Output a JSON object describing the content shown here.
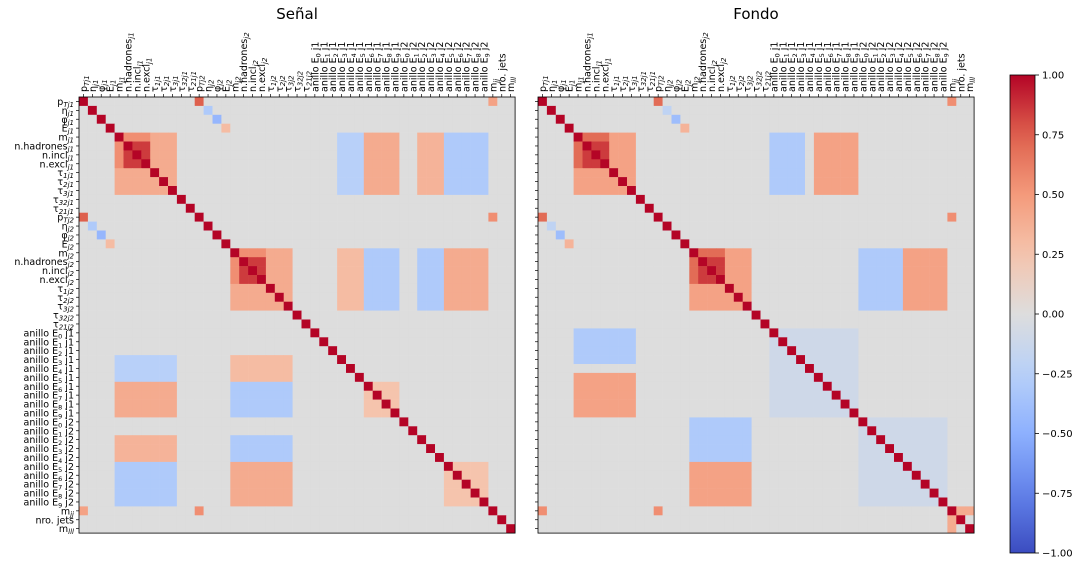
{
  "chart_data": {
    "type": "heatmap",
    "colormap": "coolwarm",
    "color_range": [
      -1.0,
      1.0
    ],
    "colorbar_ticks": [
      {
        "value": 1.0,
        "label": "1.00"
      },
      {
        "value": 0.75,
        "label": "0.75"
      },
      {
        "value": 0.5,
        "label": "0.50"
      },
      {
        "value": 0.25,
        "label": "0.25"
      },
      {
        "value": 0.0,
        "label": "0.00"
      },
      {
        "value": -0.25,
        "label": "−0.25"
      },
      {
        "value": -0.5,
        "label": "−0.50"
      },
      {
        "value": -0.75,
        "label": "−0.75"
      },
      {
        "value": -1.0,
        "label": "−1.00"
      }
    ],
    "variables": [
      "p_T_j1",
      "η_j1",
      "φ_j1",
      "E_j1",
      "m_j1",
      "n.hadrones_j1",
      "n.incl_j1",
      "n.excl_j1",
      "τ_1_j1",
      "τ_2_j1",
      "τ_3_j1",
      "τ_32_j1",
      "τ_21_j1",
      "p_T_j2",
      "η_j2",
      "φ_j2",
      "E_j2",
      "m_j2",
      "n.hadrones_j2",
      "n.incl_j2",
      "n.excl_j2",
      "τ_1_j2",
      "τ_2_j2",
      "τ_3_j2",
      "τ_32_j2",
      "τ_21_j2",
      "anillo E_0 j1",
      "anillo E_1 j1",
      "anillo E_2 j1",
      "anillo E_3 j1",
      "anillo E_4 j1",
      "anillo E_5 j1",
      "anillo E_6 j1",
      "anillo E_7 j1",
      "anillo E_8 j1",
      "anillo E_9 j1",
      "anillo E_0 j2",
      "anillo E_1 j2",
      "anillo E_2 j2",
      "anillo E_3 j2",
      "anillo E_4 j2",
      "anillo E_5 j2",
      "anillo E_6 j2",
      "anillo E_7 j2",
      "anillo E_8 j2",
      "anillo E_9 j2",
      "m_jj",
      "nro. jets",
      "m_lll"
    ],
    "panels": [
      {
        "title": "Señal",
        "blocks": [
          {
            "rows": [
              5,
              7
            ],
            "cols": [
              5,
              7
            ],
            "value": 0.85
          },
          {
            "rows": [
              4,
              4
            ],
            "cols": [
              5,
              7
            ],
            "value": 0.55
          },
          {
            "rows": [
              5,
              7
            ],
            "cols": [
              4,
              4
            ],
            "value": 0.55
          },
          {
            "rows": [
              4,
              10
            ],
            "cols": [
              4,
              10
            ],
            "value": 0.4
          },
          {
            "rows": [
              17,
              17
            ],
            "cols": [
              18,
              20
            ],
            "value": 0.55
          },
          {
            "rows": [
              18,
              20
            ],
            "cols": [
              17,
              17
            ],
            "value": 0.55
          },
          {
            "rows": [
              18,
              20
            ],
            "cols": [
              18,
              20
            ],
            "value": 0.85
          },
          {
            "rows": [
              17,
              23
            ],
            "cols": [
              17,
              23
            ],
            "value": 0.4
          },
          {
            "rows": [
              32,
              35
            ],
            "cols": [
              32,
              35
            ],
            "value": 0.25
          },
          {
            "rows": [
              41,
              45
            ],
            "cols": [
              41,
              45
            ],
            "value": 0.25
          },
          {
            "rows": [
              4,
              10
            ],
            "cols": [
              32,
              35
            ],
            "value": 0.4
          },
          {
            "rows": [
              32,
              35
            ],
            "cols": [
              4,
              10
            ],
            "value": 0.4
          },
          {
            "rows": [
              4,
              10
            ],
            "cols": [
              29,
              31
            ],
            "value": -0.25
          },
          {
            "rows": [
              29,
              31
            ],
            "cols": [
              4,
              10
            ],
            "value": -0.25
          },
          {
            "rows": [
              4,
              10
            ],
            "cols": [
              41,
              45
            ],
            "value": -0.3
          },
          {
            "rows": [
              41,
              45
            ],
            "cols": [
              4,
              10
            ],
            "value": -0.3
          },
          {
            "rows": [
              4,
              10
            ],
            "cols": [
              38,
              40
            ],
            "value": 0.35
          },
          {
            "rows": [
              38,
              40
            ],
            "cols": [
              4,
              10
            ],
            "value": 0.35
          },
          {
            "rows": [
              17,
              23
            ],
            "cols": [
              38,
              40
            ],
            "value": -0.3
          },
          {
            "rows": [
              38,
              40
            ],
            "cols": [
              17,
              23
            ],
            "value": -0.3
          },
          {
            "rows": [
              17,
              23
            ],
            "cols": [
              41,
              45
            ],
            "value": 0.4
          },
          {
            "rows": [
              41,
              45
            ],
            "cols": [
              17,
              23
            ],
            "value": 0.4
          },
          {
            "rows": [
              17,
              23
            ],
            "cols": [
              29,
              31
            ],
            "value": 0.3
          },
          {
            "rows": [
              29,
              31
            ],
            "cols": [
              17,
              23
            ],
            "value": 0.3
          },
          {
            "rows": [
              17,
              23
            ],
            "cols": [
              32,
              35
            ],
            "value": -0.3
          },
          {
            "rows": [
              32,
              35
            ],
            "cols": [
              17,
              23
            ],
            "value": -0.3
          },
          {
            "rows": [
              0,
              0
            ],
            "cols": [
              13,
              13
            ],
            "value": 0.75
          },
          {
            "rows": [
              13,
              13
            ],
            "cols": [
              0,
              0
            ],
            "value": 0.75
          },
          {
            "rows": [
              0,
              0
            ],
            "cols": [
              46,
              46
            ],
            "value": 0.45
          },
          {
            "rows": [
              46,
              46
            ],
            "cols": [
              0,
              0
            ],
            "value": 0.45
          },
          {
            "rows": [
              13,
              13
            ],
            "cols": [
              46,
              46
            ],
            "value": 0.55
          },
          {
            "rows": [
              46,
              46
            ],
            "cols": [
              13,
              13
            ],
            "value": 0.55
          },
          {
            "rows": [
              3,
              3
            ],
            "cols": [
              16,
              16
            ],
            "value": 0.3
          },
          {
            "rows": [
              16,
              16
            ],
            "cols": [
              3,
              3
            ],
            "value": 0.3
          },
          {
            "rows": [
              1,
              1
            ],
            "cols": [
              14,
              14
            ],
            "value": -0.3
          },
          {
            "rows": [
              14,
              14
            ],
            "cols": [
              1,
              1
            ],
            "value": -0.3
          },
          {
            "rows": [
              2,
              2
            ],
            "cols": [
              15,
              15
            ],
            "value": -0.45
          },
          {
            "rows": [
              15,
              15
            ],
            "cols": [
              2,
              2
            ],
            "value": -0.45
          }
        ]
      },
      {
        "title": "Fondo",
        "blocks": [
          {
            "rows": [
              5,
              7
            ],
            "cols": [
              5,
              7
            ],
            "value": 0.85
          },
          {
            "rows": [
              4,
              4
            ],
            "cols": [
              5,
              7
            ],
            "value": 0.7
          },
          {
            "rows": [
              5,
              7
            ],
            "cols": [
              4,
              4
            ],
            "value": 0.7
          },
          {
            "rows": [
              4,
              10
            ],
            "cols": [
              4,
              10
            ],
            "value": 0.45
          },
          {
            "rows": [
              17,
              17
            ],
            "cols": [
              18,
              20
            ],
            "value": 0.7
          },
          {
            "rows": [
              18,
              20
            ],
            "cols": [
              17,
              17
            ],
            "value": 0.7
          },
          {
            "rows": [
              18,
              20
            ],
            "cols": [
              18,
              20
            ],
            "value": 0.85
          },
          {
            "rows": [
              17,
              23
            ],
            "cols": [
              17,
              23
            ],
            "value": 0.45
          },
          {
            "rows": [
              26,
              35
            ],
            "cols": [
              26,
              35
            ],
            "value": -0.1
          },
          {
            "rows": [
              36,
              45
            ],
            "cols": [
              36,
              45
            ],
            "value": -0.1
          },
          {
            "rows": [
              4,
              10
            ],
            "cols": [
              26,
              29
            ],
            "value": -0.3
          },
          {
            "rows": [
              26,
              29
            ],
            "cols": [
              4,
              10
            ],
            "value": -0.3
          },
          {
            "rows": [
              4,
              10
            ],
            "cols": [
              31,
              35
            ],
            "value": 0.45
          },
          {
            "rows": [
              31,
              35
            ],
            "cols": [
              4,
              10
            ],
            "value": 0.45
          },
          {
            "rows": [
              17,
              23
            ],
            "cols": [
              36,
              40
            ],
            "value": -0.3
          },
          {
            "rows": [
              36,
              40
            ],
            "cols": [
              17,
              23
            ],
            "value": -0.3
          },
          {
            "rows": [
              17,
              23
            ],
            "cols": [
              41,
              45
            ],
            "value": 0.45
          },
          {
            "rows": [
              41,
              45
            ],
            "cols": [
              17,
              23
            ],
            "value": 0.45
          },
          {
            "rows": [
              0,
              0
            ],
            "cols": [
              13,
              13
            ],
            "value": 0.7
          },
          {
            "rows": [
              13,
              13
            ],
            "cols": [
              0,
              0
            ],
            "value": 0.7
          },
          {
            "rows": [
              0,
              0
            ],
            "cols": [
              46,
              46
            ],
            "value": 0.55
          },
          {
            "rows": [
              46,
              46
            ],
            "cols": [
              0,
              0
            ],
            "value": 0.55
          },
          {
            "rows": [
              13,
              13
            ],
            "cols": [
              46,
              46
            ],
            "value": 0.55
          },
          {
            "rows": [
              46,
              46
            ],
            "cols": [
              13,
              13
            ],
            "value": 0.55
          },
          {
            "rows": [
              3,
              3
            ],
            "cols": [
              16,
              16
            ],
            "value": 0.35
          },
          {
            "rows": [
              16,
              16
            ],
            "cols": [
              3,
              3
            ],
            "value": 0.35
          },
          {
            "rows": [
              1,
              1
            ],
            "cols": [
              14,
              14
            ],
            "value": -0.2
          },
          {
            "rows": [
              14,
              14
            ],
            "cols": [
              1,
              1
            ],
            "value": -0.2
          },
          {
            "rows": [
              2,
              2
            ],
            "cols": [
              15,
              15
            ],
            "value": -0.4
          },
          {
            "rows": [
              15,
              15
            ],
            "cols": [
              2,
              2
            ],
            "value": -0.4
          },
          {
            "rows": [
              47,
              48
            ],
            "cols": [
              46,
              46
            ],
            "value": 0.4
          },
          {
            "rows": [
              46,
              46
            ],
            "cols": [
              47,
              48
            ],
            "value": 0.4
          }
        ]
      }
    ]
  }
}
